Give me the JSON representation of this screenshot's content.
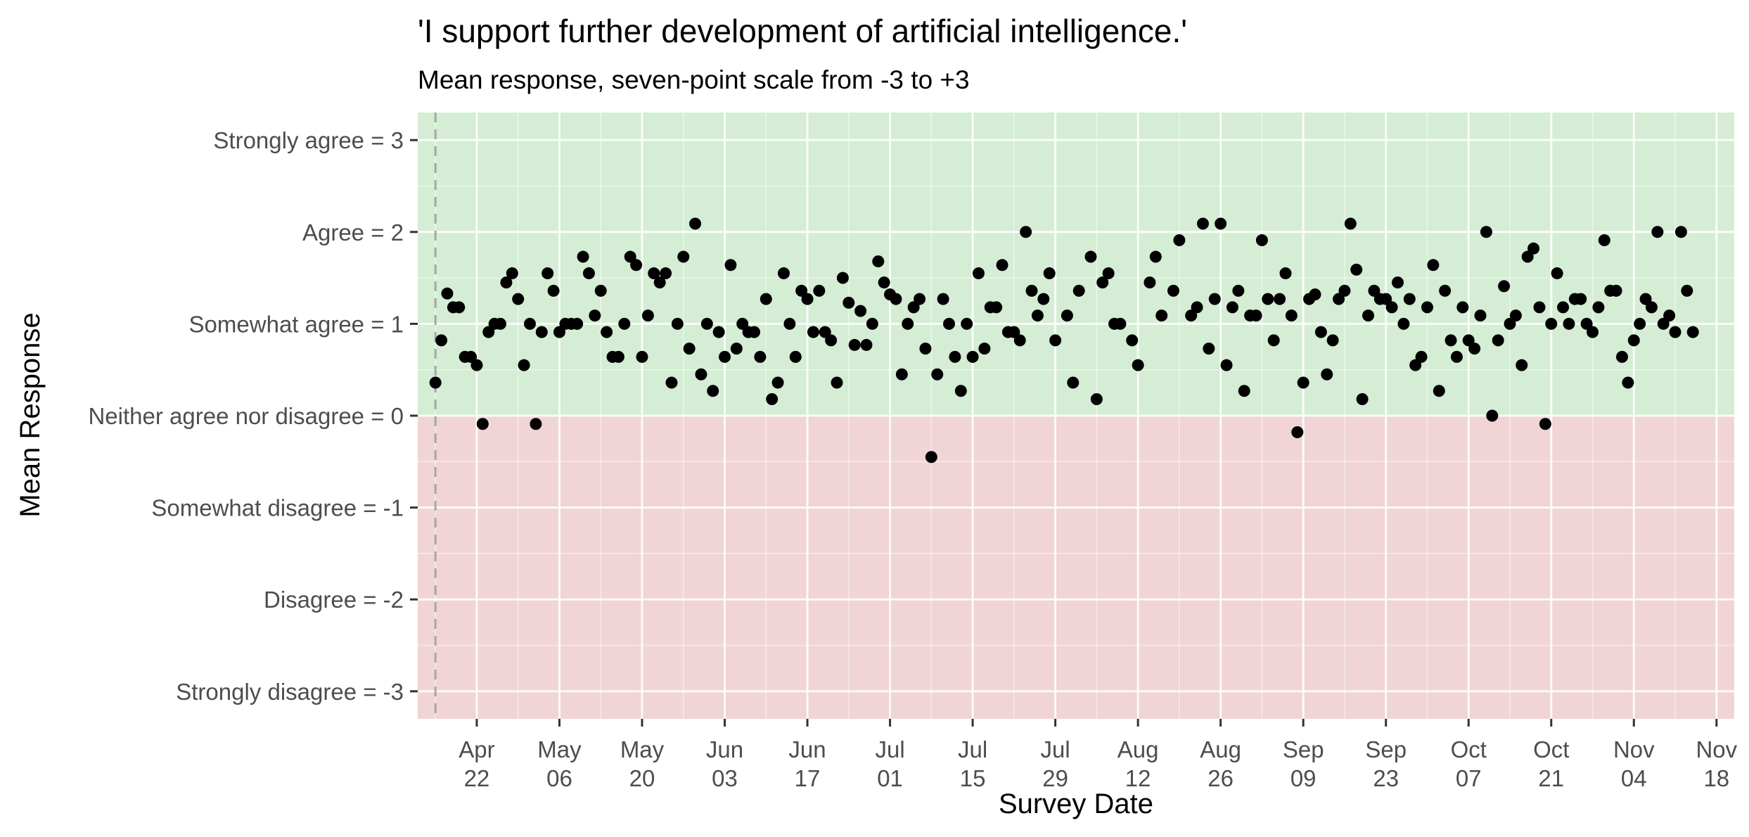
{
  "chart_data": {
    "type": "scatter",
    "title": "'I support further development of artificial intelligence.'",
    "subtitle": "Mean response, seven-point scale from -3 to +3",
    "xlabel": "Survey Date",
    "ylabel": "Mean Response",
    "x_axis_type": "date",
    "xlim": [
      "2024-04-12",
      "2024-11-21"
    ],
    "ylim": [
      -3.3,
      3.3
    ],
    "grid": true,
    "background_bands": [
      {
        "from": 0,
        "to": 3.3,
        "color": "#d4edd4"
      },
      {
        "from": -3.3,
        "to": 0,
        "color": "#f0d4d6"
      }
    ],
    "reference_line": {
      "x": "2024-04-15",
      "style": "dashed",
      "color": "#a6a6a6"
    },
    "x_ticks": [
      {
        "value": "2024-04-22",
        "label": [
          "Apr",
          "22"
        ]
      },
      {
        "value": "2024-05-06",
        "label": [
          "May",
          "06"
        ]
      },
      {
        "value": "2024-05-20",
        "label": [
          "May",
          "20"
        ]
      },
      {
        "value": "2024-06-03",
        "label": [
          "Jun",
          "03"
        ]
      },
      {
        "value": "2024-06-17",
        "label": [
          "Jun",
          "17"
        ]
      },
      {
        "value": "2024-07-01",
        "label": [
          "Jul",
          "01"
        ]
      },
      {
        "value": "2024-07-15",
        "label": [
          "Jul",
          "15"
        ]
      },
      {
        "value": "2024-07-29",
        "label": [
          "Jul",
          "29"
        ]
      },
      {
        "value": "2024-08-12",
        "label": [
          "Aug",
          "12"
        ]
      },
      {
        "value": "2024-08-26",
        "label": [
          "Aug",
          "26"
        ]
      },
      {
        "value": "2024-09-09",
        "label": [
          "Sep",
          "09"
        ]
      },
      {
        "value": "2024-09-23",
        "label": [
          "Sep",
          "23"
        ]
      },
      {
        "value": "2024-10-07",
        "label": [
          "Oct",
          "07"
        ]
      },
      {
        "value": "2024-10-21",
        "label": [
          "Oct",
          "21"
        ]
      },
      {
        "value": "2024-11-04",
        "label": [
          "Nov",
          "04"
        ]
      },
      {
        "value": "2024-11-18",
        "label": [
          "Nov",
          "18"
        ]
      }
    ],
    "y_ticks": [
      {
        "value": 3,
        "label": "Strongly agree = 3"
      },
      {
        "value": 2,
        "label": "Agree = 2"
      },
      {
        "value": 1,
        "label": "Somewhat agree = 1"
      },
      {
        "value": 0,
        "label": "Neither agree nor disagree = 0"
      },
      {
        "value": -1,
        "label": "Somewhat disagree = -1"
      },
      {
        "value": -2,
        "label": "Disagree = -2"
      },
      {
        "value": -3,
        "label": "Strongly disagree = -3"
      }
    ],
    "point_color": "#000000",
    "points": [
      [
        "2024-04-15",
        0.36
      ],
      [
        "2024-04-16",
        0.82
      ],
      [
        "2024-04-17",
        1.33
      ],
      [
        "2024-04-18",
        1.18
      ],
      [
        "2024-04-19",
        1.18
      ],
      [
        "2024-04-20",
        0.64
      ],
      [
        "2024-04-21",
        0.64
      ],
      [
        "2024-04-22",
        0.55
      ],
      [
        "2024-04-23",
        -0.09
      ],
      [
        "2024-04-24",
        0.91
      ],
      [
        "2024-04-25",
        1.0
      ],
      [
        "2024-04-26",
        1.0
      ],
      [
        "2024-04-27",
        1.45
      ],
      [
        "2024-04-28",
        1.55
      ],
      [
        "2024-04-29",
        1.27
      ],
      [
        "2024-04-30",
        0.55
      ],
      [
        "2024-05-01",
        1.0
      ],
      [
        "2024-05-02",
        -0.09
      ],
      [
        "2024-05-03",
        0.91
      ],
      [
        "2024-05-04",
        1.55
      ],
      [
        "2024-05-05",
        1.36
      ],
      [
        "2024-05-06",
        0.91
      ],
      [
        "2024-05-07",
        1.0
      ],
      [
        "2024-05-08",
        1.0
      ],
      [
        "2024-05-09",
        1.0
      ],
      [
        "2024-05-10",
        1.73
      ],
      [
        "2024-05-11",
        1.55
      ],
      [
        "2024-05-12",
        1.09
      ],
      [
        "2024-05-13",
        1.36
      ],
      [
        "2024-05-14",
        0.91
      ],
      [
        "2024-05-15",
        0.64
      ],
      [
        "2024-05-16",
        0.64
      ],
      [
        "2024-05-17",
        1.0
      ],
      [
        "2024-05-18",
        1.73
      ],
      [
        "2024-05-19",
        1.64
      ],
      [
        "2024-05-20",
        0.64
      ],
      [
        "2024-05-21",
        1.09
      ],
      [
        "2024-05-22",
        1.55
      ],
      [
        "2024-05-23",
        1.45
      ],
      [
        "2024-05-24",
        1.55
      ],
      [
        "2024-05-25",
        0.36
      ],
      [
        "2024-05-26",
        1.0
      ],
      [
        "2024-05-27",
        1.73
      ],
      [
        "2024-05-28",
        0.73
      ],
      [
        "2024-05-29",
        2.09
      ],
      [
        "2024-05-30",
        0.45
      ],
      [
        "2024-05-31",
        1.0
      ],
      [
        "2024-06-01",
        0.27
      ],
      [
        "2024-06-02",
        0.91
      ],
      [
        "2024-06-03",
        0.64
      ],
      [
        "2024-06-04",
        1.64
      ],
      [
        "2024-06-05",
        0.73
      ],
      [
        "2024-06-06",
        1.0
      ],
      [
        "2024-06-07",
        0.91
      ],
      [
        "2024-06-08",
        0.91
      ],
      [
        "2024-06-09",
        0.64
      ],
      [
        "2024-06-10",
        1.27
      ],
      [
        "2024-06-11",
        0.18
      ],
      [
        "2024-06-12",
        0.36
      ],
      [
        "2024-06-13",
        1.55
      ],
      [
        "2024-06-14",
        1.0
      ],
      [
        "2024-06-15",
        0.64
      ],
      [
        "2024-06-16",
        1.36
      ],
      [
        "2024-06-17",
        1.27
      ],
      [
        "2024-06-18",
        0.91
      ],
      [
        "2024-06-19",
        1.36
      ],
      [
        "2024-06-20",
        0.91
      ],
      [
        "2024-06-21",
        0.82
      ],
      [
        "2024-06-22",
        0.36
      ],
      [
        "2024-06-23",
        1.5
      ],
      [
        "2024-06-24",
        1.23
      ],
      [
        "2024-06-25",
        0.77
      ],
      [
        "2024-06-26",
        1.14
      ],
      [
        "2024-06-27",
        0.77
      ],
      [
        "2024-06-28",
        1.0
      ],
      [
        "2024-06-29",
        1.68
      ],
      [
        "2024-06-30",
        1.45
      ],
      [
        "2024-07-01",
        1.32
      ],
      [
        "2024-07-02",
        1.27
      ],
      [
        "2024-07-03",
        0.45
      ],
      [
        "2024-07-04",
        1.0
      ],
      [
        "2024-07-05",
        1.18
      ],
      [
        "2024-07-06",
        1.27
      ],
      [
        "2024-07-07",
        0.73
      ],
      [
        "2024-07-08",
        -0.45
      ],
      [
        "2024-07-09",
        0.45
      ],
      [
        "2024-07-10",
        1.27
      ],
      [
        "2024-07-11",
        1.0
      ],
      [
        "2024-07-12",
        0.64
      ],
      [
        "2024-07-13",
        0.27
      ],
      [
        "2024-07-14",
        1.0
      ],
      [
        "2024-07-15",
        0.64
      ],
      [
        "2024-07-16",
        1.55
      ],
      [
        "2024-07-17",
        0.73
      ],
      [
        "2024-07-18",
        1.18
      ],
      [
        "2024-07-19",
        1.18
      ],
      [
        "2024-07-20",
        1.64
      ],
      [
        "2024-07-21",
        0.91
      ],
      [
        "2024-07-22",
        0.91
      ],
      [
        "2024-07-23",
        0.82
      ],
      [
        "2024-07-24",
        2.0
      ],
      [
        "2024-07-25",
        1.36
      ],
      [
        "2024-07-26",
        1.09
      ],
      [
        "2024-07-27",
        1.27
      ],
      [
        "2024-07-28",
        1.55
      ],
      [
        "2024-07-29",
        0.82
      ],
      [
        "2024-07-31",
        1.09
      ],
      [
        "2024-08-01",
        0.36
      ],
      [
        "2024-08-02",
        1.36
      ],
      [
        "2024-08-04",
        1.73
      ],
      [
        "2024-08-05",
        0.18
      ],
      [
        "2024-08-06",
        1.45
      ],
      [
        "2024-08-07",
        1.55
      ],
      [
        "2024-08-08",
        1.0
      ],
      [
        "2024-08-09",
        1.0
      ],
      [
        "2024-08-11",
        0.82
      ],
      [
        "2024-08-12",
        0.55
      ],
      [
        "2024-08-14",
        1.45
      ],
      [
        "2024-08-15",
        1.73
      ],
      [
        "2024-08-16",
        1.09
      ],
      [
        "2024-08-18",
        1.36
      ],
      [
        "2024-08-19",
        1.91
      ],
      [
        "2024-08-21",
        1.09
      ],
      [
        "2024-08-22",
        1.18
      ],
      [
        "2024-08-23",
        2.09
      ],
      [
        "2024-08-24",
        0.73
      ],
      [
        "2024-08-25",
        1.27
      ],
      [
        "2024-08-26",
        2.09
      ],
      [
        "2024-08-27",
        0.55
      ],
      [
        "2024-08-28",
        1.18
      ],
      [
        "2024-08-29",
        1.36
      ],
      [
        "2024-08-30",
        0.27
      ],
      [
        "2024-08-31",
        1.09
      ],
      [
        "2024-09-01",
        1.09
      ],
      [
        "2024-09-02",
        1.91
      ],
      [
        "2024-09-03",
        1.27
      ],
      [
        "2024-09-04",
        0.82
      ],
      [
        "2024-09-05",
        1.27
      ],
      [
        "2024-09-06",
        1.55
      ],
      [
        "2024-09-07",
        1.09
      ],
      [
        "2024-09-08",
        -0.18
      ],
      [
        "2024-09-09",
        0.36
      ],
      [
        "2024-09-10",
        1.27
      ],
      [
        "2024-09-11",
        1.32
      ],
      [
        "2024-09-12",
        0.91
      ],
      [
        "2024-09-13",
        0.45
      ],
      [
        "2024-09-14",
        0.82
      ],
      [
        "2024-09-15",
        1.27
      ],
      [
        "2024-09-16",
        1.36
      ],
      [
        "2024-09-17",
        2.09
      ],
      [
        "2024-09-18",
        1.59
      ],
      [
        "2024-09-19",
        0.18
      ],
      [
        "2024-09-20",
        1.09
      ],
      [
        "2024-09-21",
        1.36
      ],
      [
        "2024-09-22",
        1.27
      ],
      [
        "2024-09-23",
        1.27
      ],
      [
        "2024-09-24",
        1.18
      ],
      [
        "2024-09-25",
        1.45
      ],
      [
        "2024-09-26",
        1.0
      ],
      [
        "2024-09-27",
        1.27
      ],
      [
        "2024-09-28",
        0.55
      ],
      [
        "2024-09-29",
        0.64
      ],
      [
        "2024-09-30",
        1.18
      ],
      [
        "2024-10-01",
        1.64
      ],
      [
        "2024-10-02",
        0.27
      ],
      [
        "2024-10-03",
        1.36
      ],
      [
        "2024-10-04",
        0.82
      ],
      [
        "2024-10-05",
        0.64
      ],
      [
        "2024-10-06",
        1.18
      ],
      [
        "2024-10-07",
        0.82
      ],
      [
        "2024-10-08",
        0.73
      ],
      [
        "2024-10-09",
        1.09
      ],
      [
        "2024-10-10",
        2.0
      ],
      [
        "2024-10-11",
        0.0
      ],
      [
        "2024-10-12",
        0.82
      ],
      [
        "2024-10-13",
        1.41
      ],
      [
        "2024-10-14",
        1.0
      ],
      [
        "2024-10-15",
        1.09
      ],
      [
        "2024-10-16",
        0.55
      ],
      [
        "2024-10-17",
        1.73
      ],
      [
        "2024-10-18",
        1.82
      ],
      [
        "2024-10-19",
        1.18
      ],
      [
        "2024-10-20",
        -0.09
      ],
      [
        "2024-10-21",
        1.0
      ],
      [
        "2024-10-22",
        1.55
      ],
      [
        "2024-10-23",
        1.18
      ],
      [
        "2024-10-24",
        1.0
      ],
      [
        "2024-10-25",
        1.27
      ],
      [
        "2024-10-26",
        1.27
      ],
      [
        "2024-10-27",
        1.0
      ],
      [
        "2024-10-28",
        0.91
      ],
      [
        "2024-10-29",
        1.18
      ],
      [
        "2024-10-30",
        1.91
      ],
      [
        "2024-10-31",
        1.36
      ],
      [
        "2024-11-01",
        1.36
      ],
      [
        "2024-11-02",
        0.64
      ],
      [
        "2024-11-03",
        0.36
      ],
      [
        "2024-11-04",
        0.82
      ],
      [
        "2024-11-05",
        1.0
      ],
      [
        "2024-11-06",
        1.27
      ],
      [
        "2024-11-07",
        1.18
      ],
      [
        "2024-11-08",
        2.0
      ],
      [
        "2024-11-09",
        1.0
      ],
      [
        "2024-11-10",
        1.09
      ],
      [
        "2024-11-11",
        0.91
      ],
      [
        "2024-11-12",
        2.0
      ],
      [
        "2024-11-13",
        1.36
      ],
      [
        "2024-11-14",
        0.91
      ]
    ]
  }
}
